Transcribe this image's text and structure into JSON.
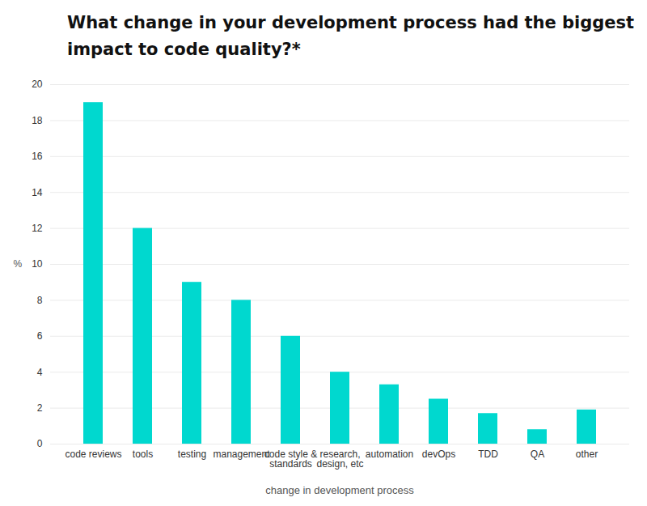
{
  "chart_data": {
    "type": "bar",
    "title": "What change in your development process had the biggest\nimpact to code quality?*",
    "x_label": "change in development process",
    "y_label": "%",
    "categories": [
      "code reviews",
      "tools",
      "testing",
      "management",
      "code style &\nstandards",
      "research,\ndesign, etc",
      "automation",
      "devOps",
      "TDD",
      "QA",
      "other"
    ],
    "values": [
      19,
      12,
      9,
      8,
      6,
      4,
      3.3,
      2.5,
      1.7,
      0.8,
      1.9
    ],
    "color": "#00d8cf",
    "ylim": [
      0,
      20
    ],
    "yticks": [
      0,
      2,
      4,
      6,
      8,
      10,
      12,
      14,
      16,
      18,
      20
    ],
    "grid": true
  }
}
